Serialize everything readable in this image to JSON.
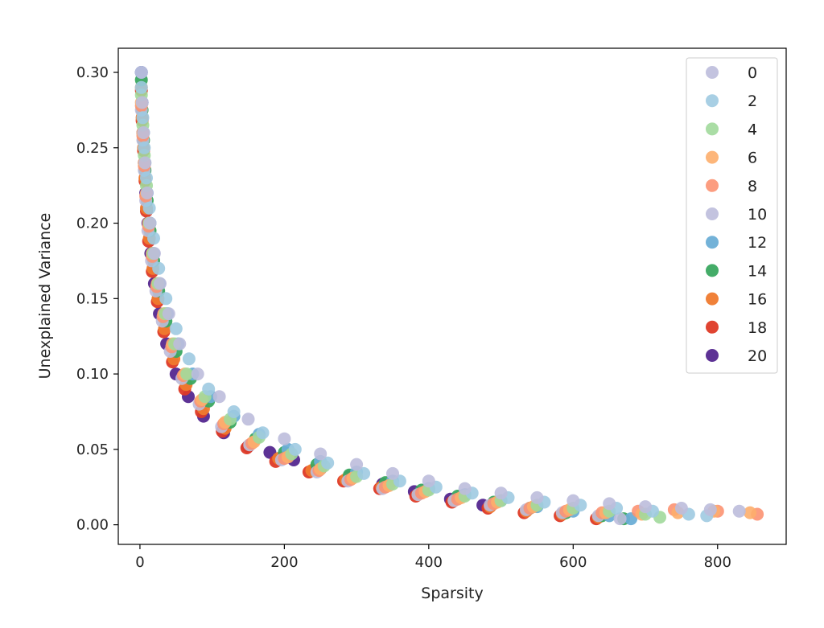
{
  "chart_data": {
    "type": "scatter",
    "title": "",
    "xlabel": "Sparsity",
    "ylabel": "Unexplained Variance",
    "xlim": [
      -30,
      895
    ],
    "ylim": [
      -0.013,
      0.316
    ],
    "xticks": [
      0,
      200,
      400,
      600,
      800
    ],
    "yticks": [
      0.0,
      0.05,
      0.1,
      0.15,
      0.2,
      0.25,
      0.3
    ],
    "xtick_labels": [
      "0",
      "200",
      "400",
      "600",
      "800"
    ],
    "ytick_labels": [
      "0.00",
      "0.05",
      "0.10",
      "0.15",
      "0.20",
      "0.25",
      "0.30"
    ],
    "grid": false,
    "legend_position": "top-right",
    "legend_order": [
      0,
      2,
      4,
      6,
      8,
      10,
      12,
      14,
      16,
      18,
      20
    ],
    "draw_order": [
      20,
      18,
      16,
      14,
      12,
      10,
      8,
      6,
      4,
      2,
      0
    ],
    "series": [
      {
        "name": "0",
        "color": "#bcbddc",
        "opacity": 0.9,
        "points": [
          [
            2,
            0.3
          ],
          [
            3,
            0.28
          ],
          [
            5,
            0.26
          ],
          [
            7,
            0.24
          ],
          [
            10,
            0.22
          ],
          [
            14,
            0.2
          ],
          [
            20,
            0.18
          ],
          [
            28,
            0.16
          ],
          [
            40,
            0.14
          ],
          [
            55,
            0.12
          ],
          [
            80,
            0.1
          ],
          [
            110,
            0.085
          ],
          [
            150,
            0.07
          ],
          [
            200,
            0.057
          ],
          [
            250,
            0.047
          ],
          [
            300,
            0.04
          ],
          [
            350,
            0.034
          ],
          [
            400,
            0.029
          ],
          [
            450,
            0.024
          ],
          [
            500,
            0.021
          ],
          [
            550,
            0.018
          ],
          [
            600,
            0.016
          ],
          [
            650,
            0.014
          ],
          [
            700,
            0.012
          ],
          [
            750,
            0.011
          ],
          [
            790,
            0.01
          ],
          [
            830,
            0.009
          ]
        ]
      },
      {
        "name": "2",
        "color": "#9ecae1",
        "opacity": 0.9,
        "points": [
          [
            2,
            0.29
          ],
          [
            4,
            0.27
          ],
          [
            6,
            0.25
          ],
          [
            9,
            0.23
          ],
          [
            13,
            0.21
          ],
          [
            19,
            0.19
          ],
          [
            26,
            0.17
          ],
          [
            36,
            0.15
          ],
          [
            50,
            0.13
          ],
          [
            68,
            0.11
          ],
          [
            95,
            0.09
          ],
          [
            130,
            0.075
          ],
          [
            170,
            0.061
          ],
          [
            215,
            0.05
          ],
          [
            260,
            0.041
          ],
          [
            310,
            0.034
          ],
          [
            360,
            0.029
          ],
          [
            410,
            0.025
          ],
          [
            460,
            0.021
          ],
          [
            510,
            0.018
          ],
          [
            560,
            0.015
          ],
          [
            610,
            0.013
          ],
          [
            660,
            0.011
          ],
          [
            710,
            0.009
          ],
          [
            760,
            0.007
          ],
          [
            785,
            0.006
          ]
        ]
      },
      {
        "name": "4",
        "color": "#a1d99b",
        "opacity": 0.9,
        "points": [
          [
            2,
            0.285
          ],
          [
            4,
            0.265
          ],
          [
            6,
            0.245
          ],
          [
            9,
            0.225
          ],
          [
            13,
            0.2
          ],
          [
            18,
            0.18
          ],
          [
            25,
            0.16
          ],
          [
            35,
            0.14
          ],
          [
            48,
            0.12
          ],
          [
            65,
            0.1
          ],
          [
            90,
            0.085
          ],
          [
            125,
            0.07
          ],
          [
            165,
            0.058
          ],
          [
            210,
            0.047
          ],
          [
            255,
            0.039
          ],
          [
            300,
            0.032
          ],
          [
            350,
            0.027
          ],
          [
            400,
            0.023
          ],
          [
            450,
            0.019
          ],
          [
            500,
            0.016
          ],
          [
            550,
            0.013
          ],
          [
            600,
            0.011
          ],
          [
            650,
            0.009
          ],
          [
            700,
            0.007
          ],
          [
            720,
            0.005
          ]
        ]
      },
      {
        "name": "6",
        "color": "#fdae6b",
        "opacity": 0.9,
        "points": [
          [
            2,
            0.28
          ],
          [
            4,
            0.26
          ],
          [
            6,
            0.24
          ],
          [
            9,
            0.22
          ],
          [
            12,
            0.2
          ],
          [
            17,
            0.18
          ],
          [
            24,
            0.16
          ],
          [
            33,
            0.14
          ],
          [
            45,
            0.12
          ],
          [
            62,
            0.1
          ],
          [
            86,
            0.083
          ],
          [
            118,
            0.068
          ],
          [
            158,
            0.055
          ],
          [
            205,
            0.045
          ],
          [
            250,
            0.037
          ],
          [
            295,
            0.031
          ],
          [
            345,
            0.026
          ],
          [
            395,
            0.022
          ],
          [
            445,
            0.018
          ],
          [
            495,
            0.015
          ],
          [
            545,
            0.012
          ],
          [
            595,
            0.01
          ],
          [
            645,
            0.008
          ],
          [
            695,
            0.007
          ],
          [
            745,
            0.008
          ],
          [
            795,
            0.009
          ],
          [
            845,
            0.008
          ]
        ]
      },
      {
        "name": "8",
        "color": "#fc9272",
        "opacity": 0.9,
        "points": [
          [
            2,
            0.278
          ],
          [
            4,
            0.258
          ],
          [
            6,
            0.238
          ],
          [
            8,
            0.218
          ],
          [
            12,
            0.198
          ],
          [
            17,
            0.178
          ],
          [
            23,
            0.158
          ],
          [
            32,
            0.138
          ],
          [
            44,
            0.118
          ],
          [
            60,
            0.099
          ],
          [
            84,
            0.082
          ],
          [
            116,
            0.067
          ],
          [
            155,
            0.054
          ],
          [
            200,
            0.044
          ],
          [
            248,
            0.036
          ],
          [
            292,
            0.03
          ],
          [
            340,
            0.025
          ],
          [
            390,
            0.021
          ],
          [
            440,
            0.017
          ],
          [
            490,
            0.014
          ],
          [
            540,
            0.011
          ],
          [
            590,
            0.009
          ],
          [
            640,
            0.008
          ],
          [
            690,
            0.009
          ],
          [
            740,
            0.01
          ],
          [
            800,
            0.009
          ],
          [
            855,
            0.007
          ]
        ]
      },
      {
        "name": "10",
        "color": "#bcbddc",
        "opacity": 0.9,
        "points": [
          [
            2,
            0.275
          ],
          [
            4,
            0.255
          ],
          [
            6,
            0.235
          ],
          [
            8,
            0.215
          ],
          [
            11,
            0.195
          ],
          [
            16,
            0.175
          ],
          [
            22,
            0.155
          ],
          [
            31,
            0.135
          ],
          [
            42,
            0.115
          ],
          [
            58,
            0.097
          ],
          [
            82,
            0.08
          ],
          [
            113,
            0.065
          ],
          [
            152,
            0.053
          ],
          [
            196,
            0.043
          ],
          [
            245,
            0.035
          ],
          [
            288,
            0.029
          ],
          [
            336,
            0.024
          ],
          [
            385,
            0.02
          ],
          [
            435,
            0.016
          ],
          [
            485,
            0.013
          ],
          [
            535,
            0.01
          ],
          [
            585,
            0.008
          ],
          [
            635,
            0.006
          ],
          [
            665,
            0.004
          ]
        ]
      },
      {
        "name": "12",
        "color": "#6baed6",
        "opacity": 0.95,
        "points": [
          [
            2,
            0.3
          ],
          [
            3,
            0.28
          ],
          [
            5,
            0.26
          ],
          [
            7,
            0.24
          ],
          [
            10,
            0.22
          ],
          [
            14,
            0.2
          ],
          [
            19,
            0.18
          ],
          [
            27,
            0.16
          ],
          [
            38,
            0.14
          ],
          [
            53,
            0.12
          ],
          [
            73,
            0.1
          ],
          [
            98,
            0.085
          ],
          [
            130,
            0.072
          ],
          [
            165,
            0.06
          ],
          [
            205,
            0.05
          ],
          [
            250,
            0.042
          ],
          [
            300,
            0.035
          ],
          [
            350,
            0.029
          ],
          [
            400,
            0.024
          ],
          [
            450,
            0.02
          ],
          [
            500,
            0.016
          ],
          [
            550,
            0.012
          ],
          [
            600,
            0.009
          ],
          [
            650,
            0.006
          ],
          [
            680,
            0.004
          ]
        ]
      },
      {
        "name": "14",
        "color": "#3aa860",
        "opacity": 0.95,
        "points": [
          [
            2,
            0.295
          ],
          [
            3,
            0.275
          ],
          [
            5,
            0.255
          ],
          [
            7,
            0.235
          ],
          [
            10,
            0.215
          ],
          [
            14,
            0.195
          ],
          [
            19,
            0.175
          ],
          [
            26,
            0.155
          ],
          [
            36,
            0.135
          ],
          [
            50,
            0.115
          ],
          [
            70,
            0.097
          ],
          [
            95,
            0.082
          ],
          [
            125,
            0.068
          ],
          [
            160,
            0.057
          ],
          [
            200,
            0.048
          ],
          [
            245,
            0.04
          ],
          [
            290,
            0.033
          ],
          [
            340,
            0.028
          ],
          [
            390,
            0.023
          ],
          [
            440,
            0.019
          ],
          [
            490,
            0.015
          ],
          [
            540,
            0.011
          ],
          [
            590,
            0.008
          ],
          [
            640,
            0.006
          ],
          [
            670,
            0.004
          ]
        ]
      },
      {
        "name": "16",
        "color": "#ef7a2e",
        "opacity": 0.95,
        "points": [
          [
            2,
            0.29
          ],
          [
            3,
            0.27
          ],
          [
            5,
            0.25
          ],
          [
            7,
            0.23
          ],
          [
            9,
            0.21
          ],
          [
            13,
            0.19
          ],
          [
            18,
            0.17
          ],
          [
            25,
            0.15
          ],
          [
            34,
            0.13
          ],
          [
            47,
            0.11
          ],
          [
            64,
            0.093
          ],
          [
            88,
            0.077
          ],
          [
            118,
            0.064
          ],
          [
            152,
            0.053
          ],
          [
            192,
            0.044
          ],
          [
            238,
            0.036
          ],
          [
            285,
            0.03
          ],
          [
            335,
            0.025
          ],
          [
            385,
            0.02
          ],
          [
            435,
            0.016
          ],
          [
            485,
            0.012
          ],
          [
            535,
            0.009
          ],
          [
            585,
            0.007
          ],
          [
            635,
            0.005
          ]
        ]
      },
      {
        "name": "18",
        "color": "#de3a26",
        "opacity": 0.95,
        "points": [
          [
            2,
            0.288
          ],
          [
            3,
            0.268
          ],
          [
            5,
            0.248
          ],
          [
            7,
            0.228
          ],
          [
            9,
            0.208
          ],
          [
            12,
            0.188
          ],
          [
            17,
            0.168
          ],
          [
            24,
            0.148
          ],
          [
            33,
            0.128
          ],
          [
            45,
            0.108
          ],
          [
            62,
            0.09
          ],
          [
            85,
            0.075
          ],
          [
            114,
            0.062
          ],
          [
            148,
            0.051
          ],
          [
            188,
            0.042
          ],
          [
            234,
            0.035
          ],
          [
            282,
            0.029
          ],
          [
            332,
            0.024
          ],
          [
            382,
            0.019
          ],
          [
            432,
            0.015
          ],
          [
            482,
            0.011
          ],
          [
            532,
            0.008
          ],
          [
            582,
            0.006
          ],
          [
            632,
            0.004
          ]
        ]
      },
      {
        "name": "20",
        "color": "#54278f",
        "opacity": 0.95,
        "points": [
          [
            2,
            0.3
          ],
          [
            3,
            0.28
          ],
          [
            4,
            0.26
          ],
          [
            6,
            0.24
          ],
          [
            8,
            0.22
          ],
          [
            11,
            0.2
          ],
          [
            15,
            0.18
          ],
          [
            20,
            0.16
          ],
          [
            27,
            0.14
          ],
          [
            37,
            0.12
          ],
          [
            50,
            0.1
          ],
          [
            67,
            0.085
          ],
          [
            88,
            0.072
          ],
          [
            116,
            0.061
          ],
          [
            150,
            0.052
          ],
          [
            180,
            0.048
          ],
          [
            213,
            0.043
          ],
          [
            250,
            0.037
          ],
          [
            290,
            0.032
          ],
          [
            336,
            0.027
          ],
          [
            380,
            0.022
          ],
          [
            430,
            0.017
          ],
          [
            475,
            0.013
          ]
        ]
      }
    ]
  }
}
